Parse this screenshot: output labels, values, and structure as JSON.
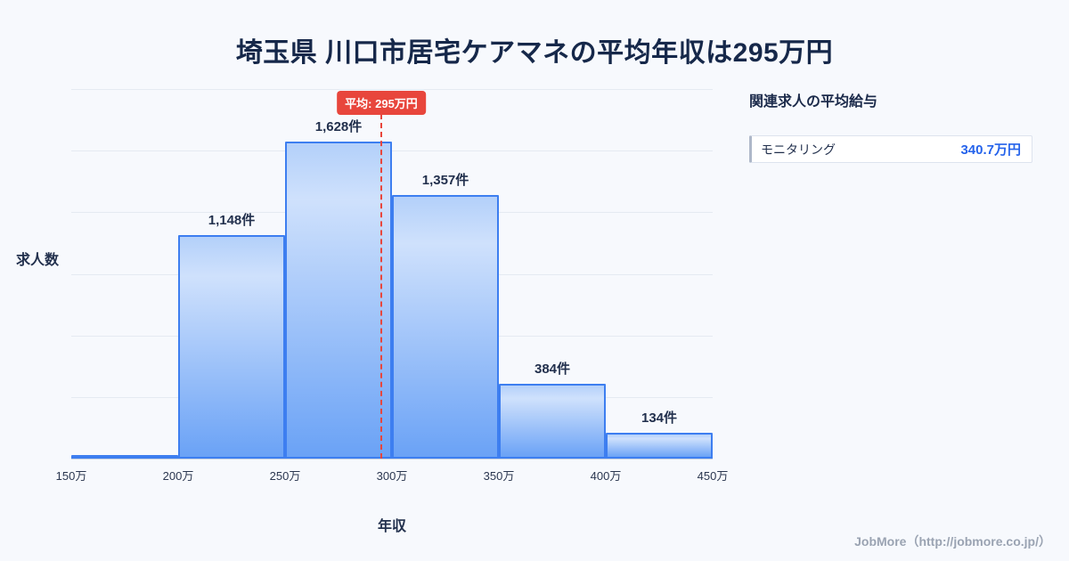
{
  "title": "埼玉県 川口市居宅ケアマネの平均年収は295万円",
  "chart_data": {
    "type": "bar",
    "title": "埼玉県 川口市居宅ケアマネの平均年収は295万円",
    "xlabel": "年収",
    "ylabel": "求人数",
    "x_ticks": [
      "150万",
      "200万",
      "250万",
      "300万",
      "350万",
      "400万",
      "450万"
    ],
    "categories": [
      "150万-200万",
      "200万-250万",
      "250万-300万",
      "300万-350万",
      "350万-400万",
      "400万-450万"
    ],
    "values": [
      0,
      1148,
      1628,
      1357,
      384,
      134
    ],
    "bar_labels": [
      "",
      "1,148件",
      "1,628件",
      "1,357件",
      "384件",
      "134件"
    ],
    "ylim": [
      0,
      1900
    ],
    "grid": true,
    "legend": "none",
    "average": {
      "value": 295,
      "label": "平均: 295万円",
      "x_min": 150,
      "x_max": 450
    }
  },
  "side_panel": {
    "heading": "関連求人の平均給与",
    "items": [
      {
        "label": "モニタリング",
        "value": "340.7万円"
      }
    ]
  },
  "footer": {
    "credit": "JobMore（http://jobmore.co.jp/）"
  },
  "colors": {
    "background": "#f7f9fd",
    "title": "#16284a",
    "bar_border": "#3d7ef0",
    "bar_fill_top": "#b3d0fa",
    "bar_fill_bottom": "#6aa2f6",
    "average_line": "#e8463c",
    "badge_background": "#e8463c",
    "badge_text": "#ffffff",
    "value_highlight": "#2563eb"
  }
}
